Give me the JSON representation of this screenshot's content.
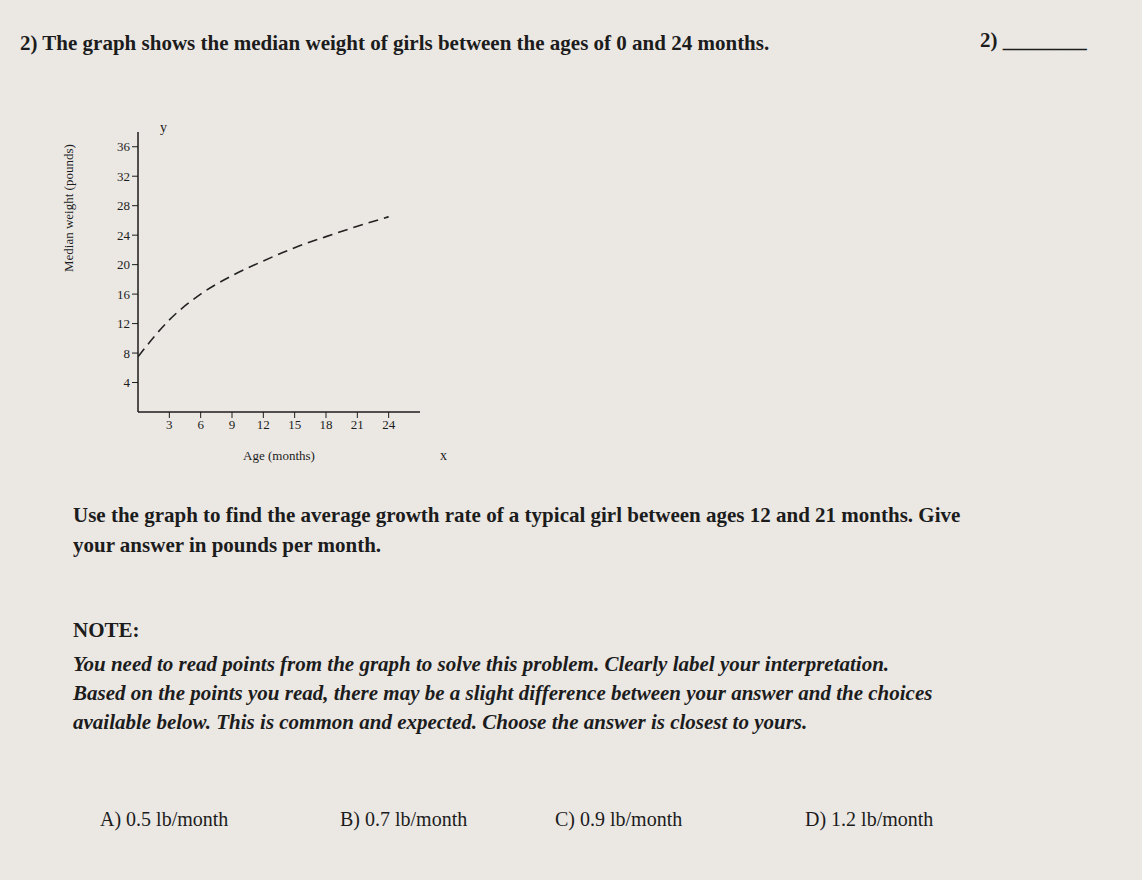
{
  "header": {
    "text": "2) The graph shows the median weight of girls between the ages of 0 and 24 months.",
    "answer_blank": "2) ________"
  },
  "chart_data": {
    "type": "line",
    "x_label": "Age (months)",
    "y_label": "Median weight (pounds)",
    "x_axis_name": "x",
    "y_axis_name": "y",
    "x": [
      0,
      3,
      6,
      9,
      12,
      15,
      18,
      21,
      24
    ],
    "values": [
      7.5,
      12.5,
      16,
      18.5,
      20.5,
      22.3,
      23.8,
      25.2,
      26.5
    ],
    "color": "#222222",
    "line_style": "dashed",
    "marker": "none",
    "xlim": [
      0,
      27
    ],
    "ylim": [
      0,
      38
    ],
    "xticks": [
      3,
      6,
      9,
      12,
      15,
      18,
      21,
      24
    ],
    "yticks": [
      4,
      8,
      12,
      16,
      20,
      24,
      28,
      32,
      36
    ],
    "grid": false
  },
  "question": "Use the graph to find the average growth rate of a typical girl between ages 12 and 21 months. Give your answer in pounds per month.",
  "note": {
    "title": "NOTE:",
    "text": "You need to read points from the graph to solve this problem. Clearly label your interpretation. Based on the points you read, there may be a slight difference between your answer and the choices available below. This is common and expected. Choose the answer is closest to yours."
  },
  "choices": [
    "A) 0.5 lb/month",
    "B) 0.7 lb/month",
    "C) 0.9 lb/month",
    "D) 1.2 lb/month"
  ]
}
